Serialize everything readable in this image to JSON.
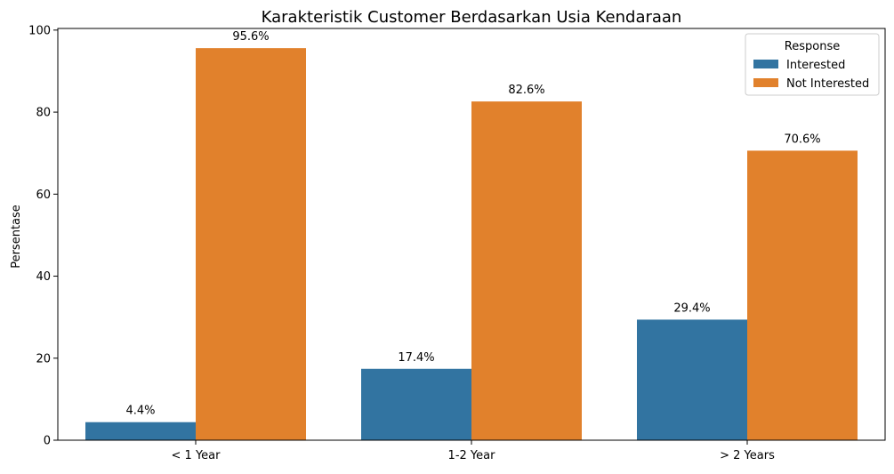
{
  "chart_data": {
    "type": "bar",
    "title": "Karakteristik Customer Berdasarkan Usia Kendaraan",
    "xlabel": "",
    "ylabel": "Persentase",
    "categories": [
      "< 1 Year",
      "1-2 Year",
      "> 2 Years"
    ],
    "series": [
      {
        "name": "Interested",
        "values": [
          4.4,
          17.4,
          29.4
        ],
        "labels": [
          "4.4%",
          "17.4%",
          "29.4%"
        ],
        "color": "#3274a1"
      },
      {
        "name": "Not Interested",
        "values": [
          95.6,
          82.6,
          70.6
        ],
        "labels": [
          "95.6%",
          "82.6%",
          "70.6%"
        ],
        "color": "#e1812c"
      }
    ],
    "ylim": [
      0,
      100.4
    ],
    "yticks": [
      0,
      20,
      40,
      60,
      80,
      100
    ],
    "ytick_labels": [
      "0",
      "20",
      "40",
      "60",
      "80",
      "100"
    ],
    "grid": false,
    "legend": {
      "title": "Response",
      "placement": "top-right"
    }
  }
}
